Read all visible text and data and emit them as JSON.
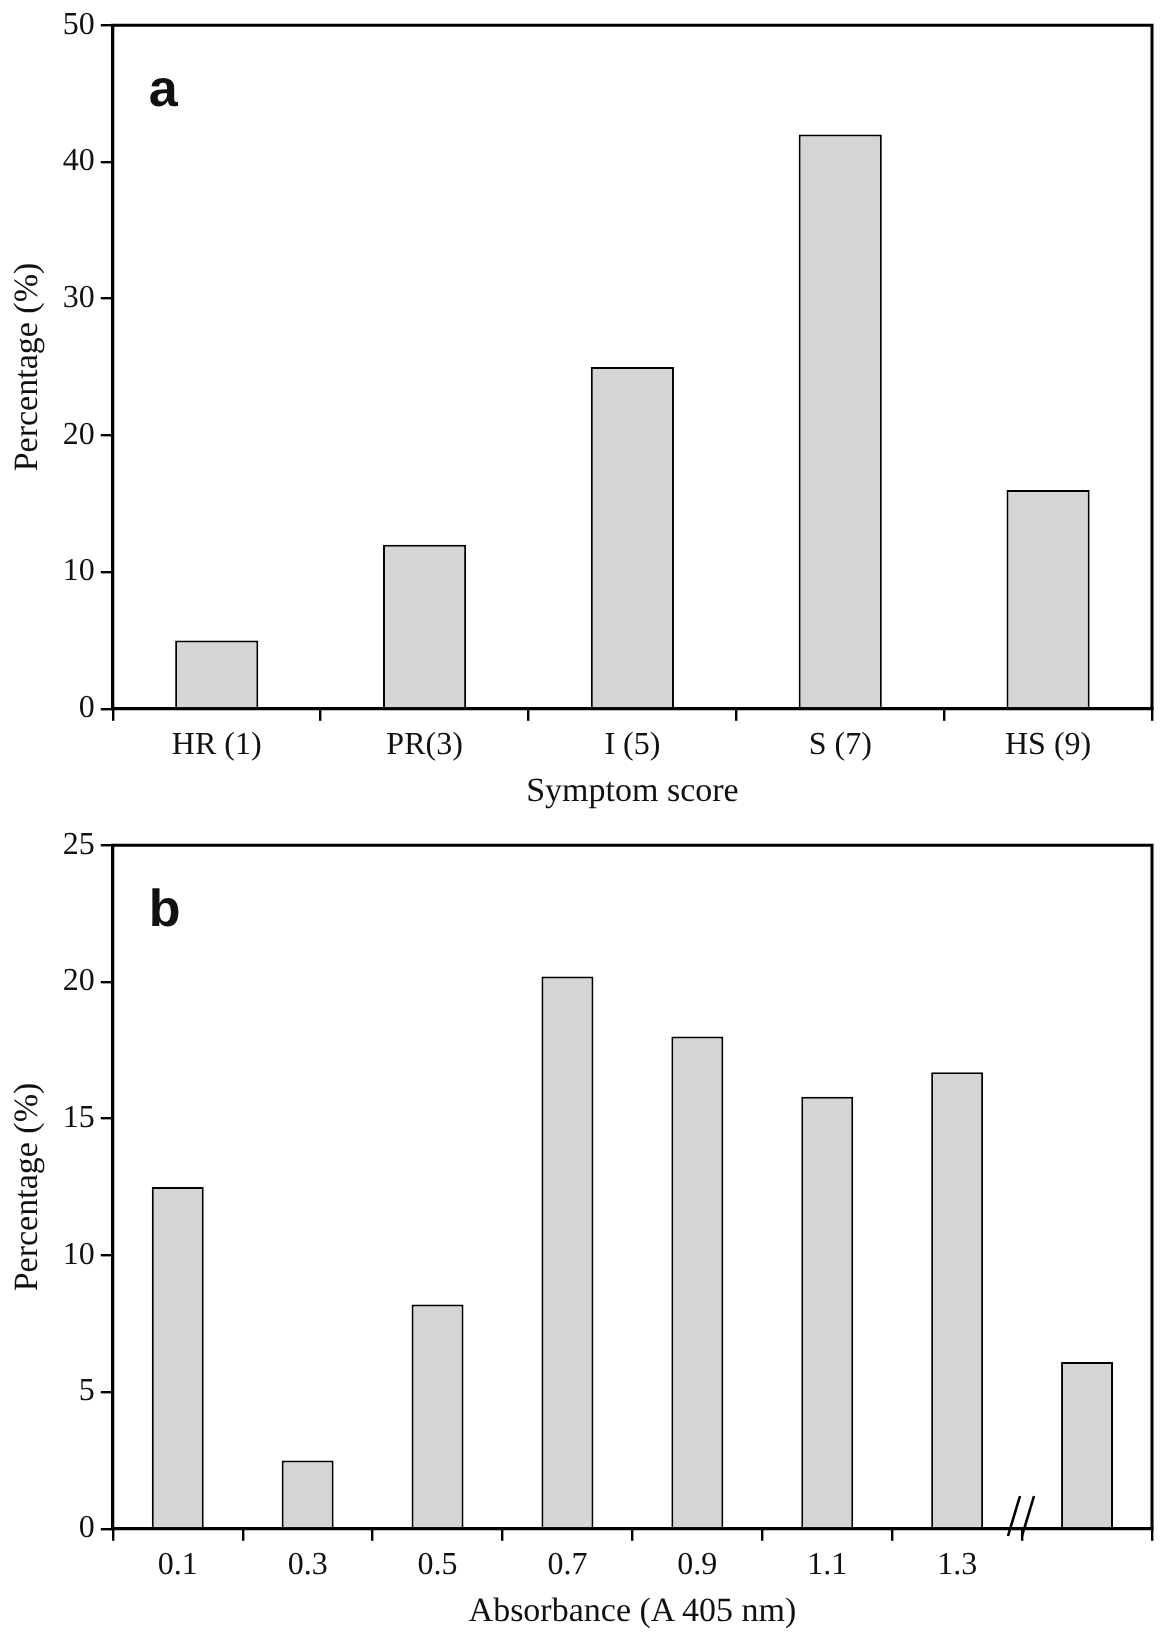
{
  "chart_data": [
    {
      "type": "bar",
      "title": "a",
      "xlabel": "Symptom score",
      "ylabel": "Percentage (%)",
      "categories": [
        "HR (1)",
        "PR(3)",
        "I (5)",
        "S (7)",
        "HS (9)"
      ],
      "values": [
        5,
        12,
        25,
        42,
        16
      ],
      "color": "#d4d5d4",
      "ylim": [
        0,
        50
      ],
      "yticks": [
        0,
        10,
        20,
        30,
        40,
        50
      ],
      "grid": false,
      "legend": false
    },
    {
      "type": "bar",
      "title": "b",
      "xlabel": "Absorbance (A 405 nm)",
      "ylabel": "Percentage (%)",
      "categories": [
        "0.1",
        "0.3",
        "0.5",
        "0.7",
        "0.9",
        "1.1",
        "1.3",
        null
      ],
      "values": [
        12.5,
        2.5,
        8.2,
        20.2,
        18.0,
        15.8,
        16.7,
        6.1
      ],
      "color": "#d4d5d4",
      "ylim": [
        0,
        25
      ],
      "yticks": [
        0,
        5,
        10,
        15,
        20,
        25
      ],
      "grid": false,
      "legend": false
    }
  ]
}
